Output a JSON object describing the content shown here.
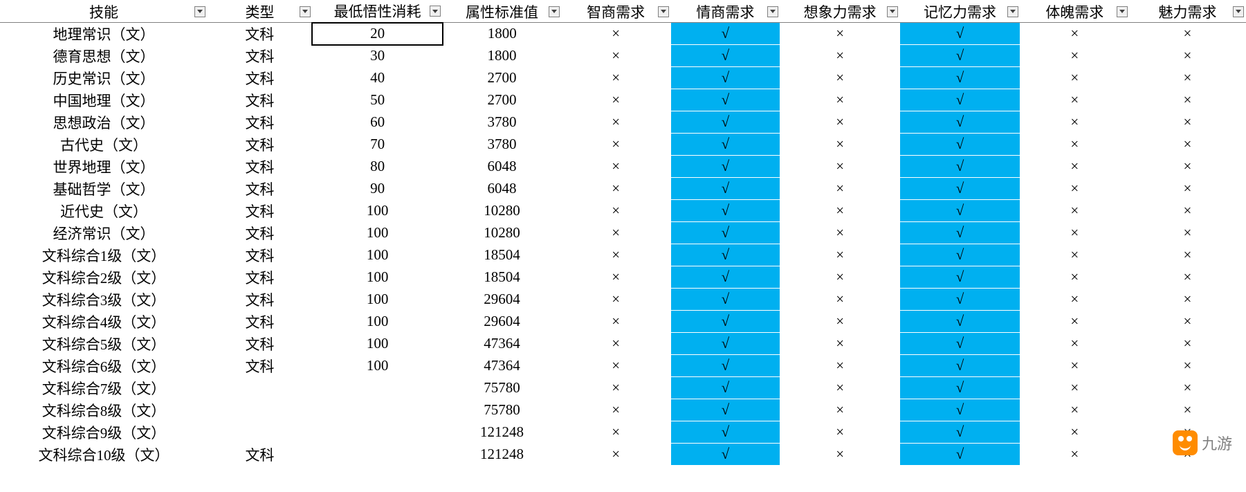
{
  "colors": {
    "highlight": "#00b0f0",
    "background": "#ffffff",
    "border": "#808080",
    "selected_border": "#000000"
  },
  "symbols": {
    "check": "√",
    "cross": "×"
  },
  "headers": [
    "技能",
    "类型",
    "最低悟性消耗",
    "属性标准值",
    "智商需求",
    "情商需求",
    "想象力需求",
    "记忆力需求",
    "体魄需求",
    "魅力需求"
  ],
  "highlighted_columns": [
    5,
    7
  ],
  "selected_cell": {
    "row": 0,
    "col": 2
  },
  "watermark": {
    "text": "九游",
    "icon_color": "#ff8c00"
  },
  "rows": [
    {
      "skill": "地理常识（文）",
      "type": "文科",
      "cost": "20",
      "attr": "1800",
      "req": [
        "×",
        "√",
        "×",
        "√",
        "×",
        "×"
      ]
    },
    {
      "skill": "德育思想（文）",
      "type": "文科",
      "cost": "30",
      "attr": "1800",
      "req": [
        "×",
        "√",
        "×",
        "√",
        "×",
        "×"
      ]
    },
    {
      "skill": "历史常识（文）",
      "type": "文科",
      "cost": "40",
      "attr": "2700",
      "req": [
        "×",
        "√",
        "×",
        "√",
        "×",
        "×"
      ]
    },
    {
      "skill": "中国地理（文）",
      "type": "文科",
      "cost": "50",
      "attr": "2700",
      "req": [
        "×",
        "√",
        "×",
        "√",
        "×",
        "×"
      ]
    },
    {
      "skill": "思想政治（文）",
      "type": "文科",
      "cost": "60",
      "attr": "3780",
      "req": [
        "×",
        "√",
        "×",
        "√",
        "×",
        "×"
      ]
    },
    {
      "skill": "古代史（文）",
      "type": "文科",
      "cost": "70",
      "attr": "3780",
      "req": [
        "×",
        "√",
        "×",
        "√",
        "×",
        "×"
      ]
    },
    {
      "skill": "世界地理（文）",
      "type": "文科",
      "cost": "80",
      "attr": "6048",
      "req": [
        "×",
        "√",
        "×",
        "√",
        "×",
        "×"
      ]
    },
    {
      "skill": "基础哲学（文）",
      "type": "文科",
      "cost": "90",
      "attr": "6048",
      "req": [
        "×",
        "√",
        "×",
        "√",
        "×",
        "×"
      ]
    },
    {
      "skill": "近代史（文）",
      "type": "文科",
      "cost": "100",
      "attr": "10280",
      "req": [
        "×",
        "√",
        "×",
        "√",
        "×",
        "×"
      ]
    },
    {
      "skill": "经济常识（文）",
      "type": "文科",
      "cost": "100",
      "attr": "10280",
      "req": [
        "×",
        "√",
        "×",
        "√",
        "×",
        "×"
      ]
    },
    {
      "skill": "文科综合1级（文）",
      "type": "文科",
      "cost": "100",
      "attr": "18504",
      "req": [
        "×",
        "√",
        "×",
        "√",
        "×",
        "×"
      ]
    },
    {
      "skill": "文科综合2级（文）",
      "type": "文科",
      "cost": "100",
      "attr": "18504",
      "req": [
        "×",
        "√",
        "×",
        "√",
        "×",
        "×"
      ]
    },
    {
      "skill": "文科综合3级（文）",
      "type": "文科",
      "cost": "100",
      "attr": "29604",
      "req": [
        "×",
        "√",
        "×",
        "√",
        "×",
        "×"
      ]
    },
    {
      "skill": "文科综合4级（文）",
      "type": "文科",
      "cost": "100",
      "attr": "29604",
      "req": [
        "×",
        "√",
        "×",
        "√",
        "×",
        "×"
      ]
    },
    {
      "skill": "文科综合5级（文）",
      "type": "文科",
      "cost": "100",
      "attr": "47364",
      "req": [
        "×",
        "√",
        "×",
        "√",
        "×",
        "×"
      ]
    },
    {
      "skill": "文科综合6级（文）",
      "type": "文科",
      "cost": "100",
      "attr": "47364",
      "req": [
        "×",
        "√",
        "×",
        "√",
        "×",
        "×"
      ]
    },
    {
      "skill": "文科综合7级（文）",
      "type": "",
      "cost": "",
      "attr": "75780",
      "req": [
        "×",
        "√",
        "×",
        "√",
        "×",
        "×"
      ]
    },
    {
      "skill": "文科综合8级（文）",
      "type": "",
      "cost": "",
      "attr": "75780",
      "req": [
        "×",
        "√",
        "×",
        "√",
        "×",
        "×"
      ]
    },
    {
      "skill": "文科综合9级（文）",
      "type": "",
      "cost": "",
      "attr": "121248",
      "req": [
        "×",
        "√",
        "×",
        "√",
        "×",
        "×"
      ]
    },
    {
      "skill": "文科综合10级（文）",
      "type": "文科",
      "cost": "",
      "attr": "121248",
      "req": [
        "×",
        "√",
        "×",
        "√",
        "×",
        "×"
      ]
    }
  ]
}
